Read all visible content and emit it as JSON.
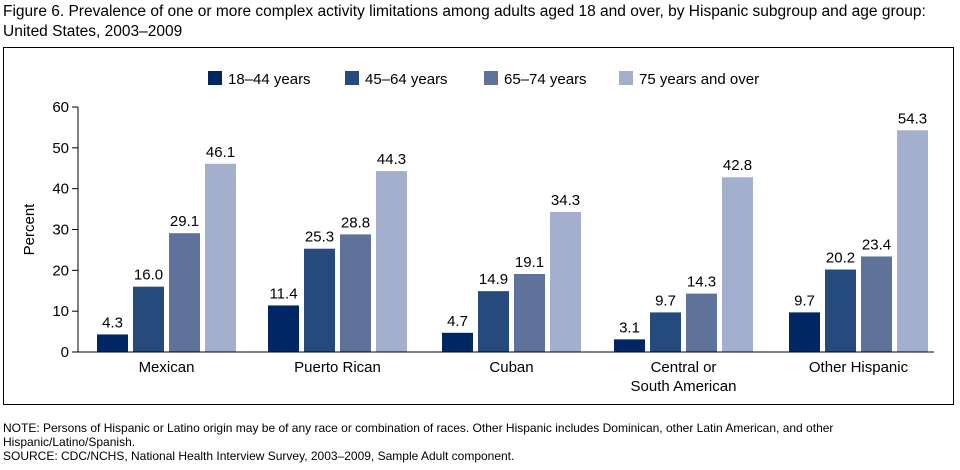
{
  "figure": {
    "title": "Figure 6. Prevalence of one or more complex activity limitations among adults aged 18 and over, by Hispanic subgroup and age group: United States, 2003–2009",
    "note": "NOTE: Persons of Hispanic or Latino origin may be of any race or combination of races. Other Hispanic includes Dominican, other Latin American, and other Hispanic/Latino/Spanish.",
    "source": "SOURCE: CDC/NCHS, National Health Interview Survey, 2003–2009, Sample Adult component."
  },
  "chart_data": {
    "type": "bar",
    "title": "",
    "xlabel": "",
    "ylabel": "Percent",
    "ylim": [
      0,
      60
    ],
    "yticks": [
      "0",
      "10",
      "20",
      "30",
      "40",
      "50",
      "60"
    ],
    "grid": false,
    "legend_position": "top",
    "categories": [
      [
        "Mexican"
      ],
      [
        "Puerto Rican"
      ],
      [
        "Cuban"
      ],
      [
        "Central or",
        "South American"
      ],
      [
        "Other Hispanic"
      ]
    ],
    "series": [
      {
        "name": "18–44 years",
        "color": "#002664",
        "values": [
          4.3,
          11.4,
          4.7,
          3.1,
          9.7
        ],
        "labels": [
          "4.3",
          "11.4",
          "4.7",
          "3.1",
          "9.7"
        ]
      },
      {
        "name": "45–64 years",
        "color": "#264a7c",
        "values": [
          16.0,
          25.3,
          14.9,
          9.7,
          20.2
        ],
        "labels": [
          "16.0",
          "25.3",
          "14.9",
          "9.7",
          "20.2"
        ]
      },
      {
        "name": "65–74 years",
        "color": "#5f7299",
        "values": [
          29.1,
          28.8,
          19.1,
          14.3,
          23.4
        ],
        "labels": [
          "29.1",
          "28.8",
          "19.1",
          "14.3",
          "23.4"
        ]
      },
      {
        "name": "75 years and over",
        "color": "#a3afcc",
        "values": [
          46.1,
          44.3,
          34.3,
          42.8,
          54.3
        ],
        "labels": [
          "46.1",
          "44.3",
          "34.3",
          "42.8",
          "54.3"
        ]
      }
    ]
  }
}
